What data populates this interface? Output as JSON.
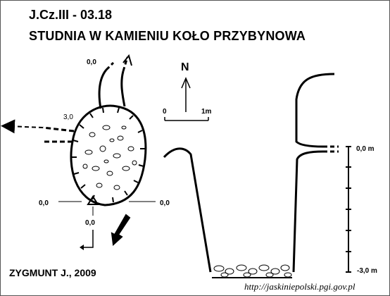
{
  "header": {
    "code": "J.Cz.III - 03.18",
    "title": "STUDNIA W KAMIENIU KOŁO PRZYBYNOWA"
  },
  "footer": {
    "author": "ZYGMUNT J., 2009",
    "url": "http://jaskiniepolski.pgi.gov.pl"
  },
  "compass": {
    "north_label": "N"
  },
  "scale_bar": {
    "start_label": "0",
    "end_label": "1m"
  },
  "plan": {
    "depth_top": "0,0",
    "depth_upper_left": "3,0",
    "depth_left": "0,0",
    "depth_right": "0,0",
    "depth_bottom": "0,0"
  },
  "section": {
    "depth_top": "0,0 m",
    "depth_bottom": "-3,0 m"
  },
  "colors": {
    "ink": "#000000",
    "background": "#ffffff"
  }
}
